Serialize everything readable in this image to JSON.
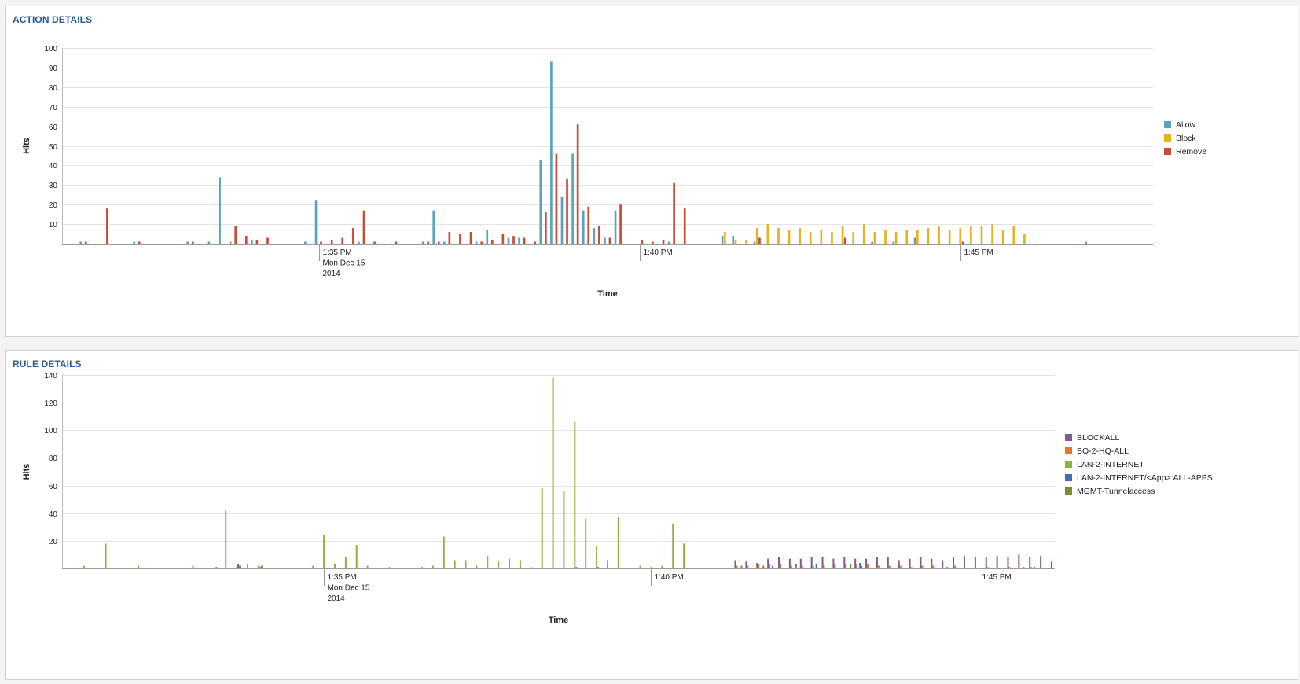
{
  "panels": {
    "action": {
      "title": "ACTION DETAILS"
    },
    "rule": {
      "title": "RULE DETAILS"
    }
  },
  "chart_data": [
    {
      "type": "bar",
      "title": "ACTION DETAILS",
      "xlabel": "Time",
      "ylabel": "Hits",
      "ylim": [
        0,
        100
      ],
      "yticks": [
        10,
        20,
        30,
        40,
        50,
        60,
        70,
        80,
        90,
        100
      ],
      "xlim": [
        -24,
        78
      ],
      "xunit": "minutes after 1:35 PM",
      "xticks": [
        {
          "x": 0,
          "lines": [
            "1:35 PM",
            "Mon Dec 15",
            "2014"
          ]
        },
        {
          "x": 30,
          "lines": [
            "1:40 PM"
          ]
        },
        {
          "x": 60,
          "lines": [
            "1:45 PM"
          ]
        }
      ],
      "grid": true,
      "legend_position": "right",
      "series": [
        {
          "name": "Allow",
          "color": "#5ba3bd",
          "points": [
            [
              -22,
              1
            ],
            [
              -17,
              1
            ],
            [
              -12,
              1
            ],
            [
              -10,
              1
            ],
            [
              -9,
              34
            ],
            [
              -8,
              1
            ],
            [
              -6,
              2
            ],
            [
              -1,
              1
            ],
            [
              0,
              22
            ],
            [
              4,
              1
            ],
            [
              10,
              1
            ],
            [
              11,
              17
            ],
            [
              12,
              1
            ],
            [
              15,
              1
            ],
            [
              16,
              7
            ],
            [
              18,
              3
            ],
            [
              19,
              3
            ],
            [
              21,
              43
            ],
            [
              22,
              93
            ],
            [
              23,
              24
            ],
            [
              24,
              46
            ],
            [
              25,
              17
            ],
            [
              26,
              8
            ],
            [
              27,
              3
            ],
            [
              28,
              17
            ],
            [
              33,
              1
            ],
            [
              38,
              4
            ],
            [
              39,
              4
            ],
            [
              41,
              1
            ],
            [
              52,
              1
            ],
            [
              54,
              1
            ],
            [
              56,
              3
            ],
            [
              72,
              1
            ]
          ]
        },
        {
          "name": "Block",
          "color": "#e6b21e",
          "points": [
            [
              38,
              6
            ],
            [
              39,
              2
            ],
            [
              40,
              2
            ],
            [
              41,
              8
            ],
            [
              42,
              10
            ],
            [
              43,
              8
            ],
            [
              44,
              7
            ],
            [
              45,
              8
            ],
            [
              46,
              6
            ],
            [
              47,
              7
            ],
            [
              48,
              6
            ],
            [
              49,
              9
            ],
            [
              50,
              6
            ],
            [
              51,
              10
            ],
            [
              52,
              6
            ],
            [
              53,
              7
            ],
            [
              54,
              6
            ],
            [
              55,
              7
            ],
            [
              56,
              7
            ],
            [
              57,
              8
            ],
            [
              58,
              9
            ],
            [
              59,
              7
            ],
            [
              60,
              8
            ],
            [
              61,
              9
            ],
            [
              62,
              9
            ],
            [
              63,
              10
            ],
            [
              64,
              7
            ],
            [
              65,
              9
            ],
            [
              66,
              5
            ]
          ]
        },
        {
          "name": "Remove",
          "color": "#c84b34",
          "points": [
            [
              -22,
              1
            ],
            [
              -20,
              18
            ],
            [
              -17,
              1
            ],
            [
              -12,
              1
            ],
            [
              -8,
              9
            ],
            [
              -7,
              4
            ],
            [
              -6,
              2
            ],
            [
              -5,
              3
            ],
            [
              0,
              1
            ],
            [
              1,
              2
            ],
            [
              2,
              3
            ],
            [
              3,
              8
            ],
            [
              4,
              17
            ],
            [
              5,
              1
            ],
            [
              7,
              1
            ],
            [
              10,
              1
            ],
            [
              11,
              1
            ],
            [
              12,
              6
            ],
            [
              13,
              5
            ],
            [
              14,
              6
            ],
            [
              15,
              1
            ],
            [
              16,
              2
            ],
            [
              17,
              5
            ],
            [
              18,
              4
            ],
            [
              19,
              3
            ],
            [
              20,
              1
            ],
            [
              21,
              16
            ],
            [
              22,
              46
            ],
            [
              23,
              33
            ],
            [
              24,
              61
            ],
            [
              25,
              19
            ],
            [
              26,
              9
            ],
            [
              27,
              3
            ],
            [
              28,
              20
            ],
            [
              30,
              2
            ],
            [
              31,
              1
            ],
            [
              32,
              2
            ],
            [
              33,
              31
            ],
            [
              34,
              18
            ],
            [
              41,
              3
            ],
            [
              49,
              3
            ],
            [
              60,
              1
            ]
          ]
        }
      ]
    },
    {
      "type": "bar",
      "title": "RULE DETAILS",
      "xlabel": "Time",
      "ylabel": "Hits",
      "ylim": [
        0,
        140
      ],
      "yticks": [
        20,
        40,
        60,
        80,
        100,
        120,
        140
      ],
      "xlim": [
        -24,
        67
      ],
      "xunit": "minutes after 1:35 PM",
      "xticks": [
        {
          "x": 0,
          "lines": [
            "1:35 PM",
            "Mon Dec 15",
            "2014"
          ]
        },
        {
          "x": 30,
          "lines": [
            "1:40 PM"
          ]
        },
        {
          "x": 60,
          "lines": [
            "1:45 PM"
          ]
        }
      ],
      "grid": true,
      "legend_position": "right",
      "series": [
        {
          "name": "BLOCKALL",
          "color": "#7f5a93",
          "points": [
            [
              38,
              6
            ],
            [
              39,
              5
            ],
            [
              40,
              4
            ],
            [
              41,
              7
            ],
            [
              42,
              8
            ],
            [
              43,
              7
            ],
            [
              44,
              7
            ],
            [
              45,
              8
            ],
            [
              46,
              8
            ],
            [
              47,
              7
            ],
            [
              48,
              8
            ],
            [
              49,
              7
            ],
            [
              50,
              7
            ],
            [
              51,
              8
            ],
            [
              52,
              8
            ],
            [
              53,
              6
            ],
            [
              54,
              7
            ],
            [
              55,
              8
            ],
            [
              56,
              7
            ],
            [
              57,
              6
            ],
            [
              58,
              8
            ],
            [
              59,
              9
            ],
            [
              60,
              8
            ],
            [
              61,
              8
            ],
            [
              62,
              9
            ],
            [
              63,
              8
            ],
            [
              64,
              10
            ],
            [
              65,
              8
            ],
            [
              66,
              9
            ],
            [
              67,
              5
            ]
          ]
        },
        {
          "name": "BO-2-HQ-ALL",
          "color": "#e0772e",
          "points": [
            [
              38,
              2
            ],
            [
              39,
              2
            ],
            [
              40,
              3
            ],
            [
              41,
              3
            ],
            [
              42,
              3
            ],
            [
              43,
              2
            ],
            [
              44,
              2
            ],
            [
              45,
              2
            ],
            [
              46,
              2
            ],
            [
              47,
              3
            ],
            [
              48,
              3
            ],
            [
              49,
              3
            ],
            [
              50,
              3
            ],
            [
              51,
              2
            ],
            [
              52,
              2
            ],
            [
              53,
              2
            ],
            [
              54,
              1
            ],
            [
              55,
              2
            ],
            [
              56,
              2
            ],
            [
              58,
              2
            ],
            [
              61,
              1
            ],
            [
              63,
              1
            ],
            [
              65,
              1
            ]
          ]
        },
        {
          "name": "LAN-2-INTERNET",
          "color": "#8db33c",
          "points": [
            [
              -22,
              2
            ],
            [
              -20,
              18
            ],
            [
              -17,
              2
            ],
            [
              -12,
              2
            ],
            [
              -9,
              42
            ],
            [
              -8,
              1
            ],
            [
              -7,
              3
            ],
            [
              -6,
              2
            ],
            [
              -1,
              2
            ],
            [
              0,
              24
            ],
            [
              1,
              3
            ],
            [
              2,
              8
            ],
            [
              3,
              17
            ],
            [
              4,
              2
            ],
            [
              6,
              1
            ],
            [
              9,
              1
            ],
            [
              10,
              2
            ],
            [
              11,
              23
            ],
            [
              12,
              6
            ],
            [
              13,
              6
            ],
            [
              14,
              2
            ],
            [
              15,
              9
            ],
            [
              16,
              5
            ],
            [
              17,
              7
            ],
            [
              18,
              6
            ],
            [
              19,
              1
            ],
            [
              20,
              58
            ],
            [
              21,
              138
            ],
            [
              22,
              56
            ],
            [
              23,
              106
            ],
            [
              24,
              36
            ],
            [
              25,
              16
            ],
            [
              26,
              6
            ],
            [
              27,
              37
            ],
            [
              29,
              2
            ],
            [
              30,
              1
            ],
            [
              31,
              2
            ],
            [
              32,
              32
            ],
            [
              33,
              18
            ]
          ]
        },
        {
          "name": "LAN-2-INTERNET/<App>:ALL-APPS",
          "color": "#466ea8",
          "points": [
            [
              -10,
              1
            ],
            [
              -8,
              3
            ],
            [
              -6,
              1
            ],
            [
              23,
              1
            ],
            [
              25,
              1
            ],
            [
              41,
              2
            ],
            [
              45,
              3
            ],
            [
              49,
              4
            ],
            [
              57,
              1
            ],
            [
              64,
              1
            ],
            [
              65,
              1
            ]
          ]
        },
        {
          "name": "MGMT-Tunnelaccess",
          "color": "#7a8a3a",
          "points": [
            [
              -8,
              2
            ],
            [
              -6,
              2
            ],
            [
              38,
              2
            ],
            [
              40,
              2
            ],
            [
              43,
              3
            ],
            [
              48,
              3
            ],
            [
              49,
              2
            ]
          ]
        }
      ]
    }
  ]
}
